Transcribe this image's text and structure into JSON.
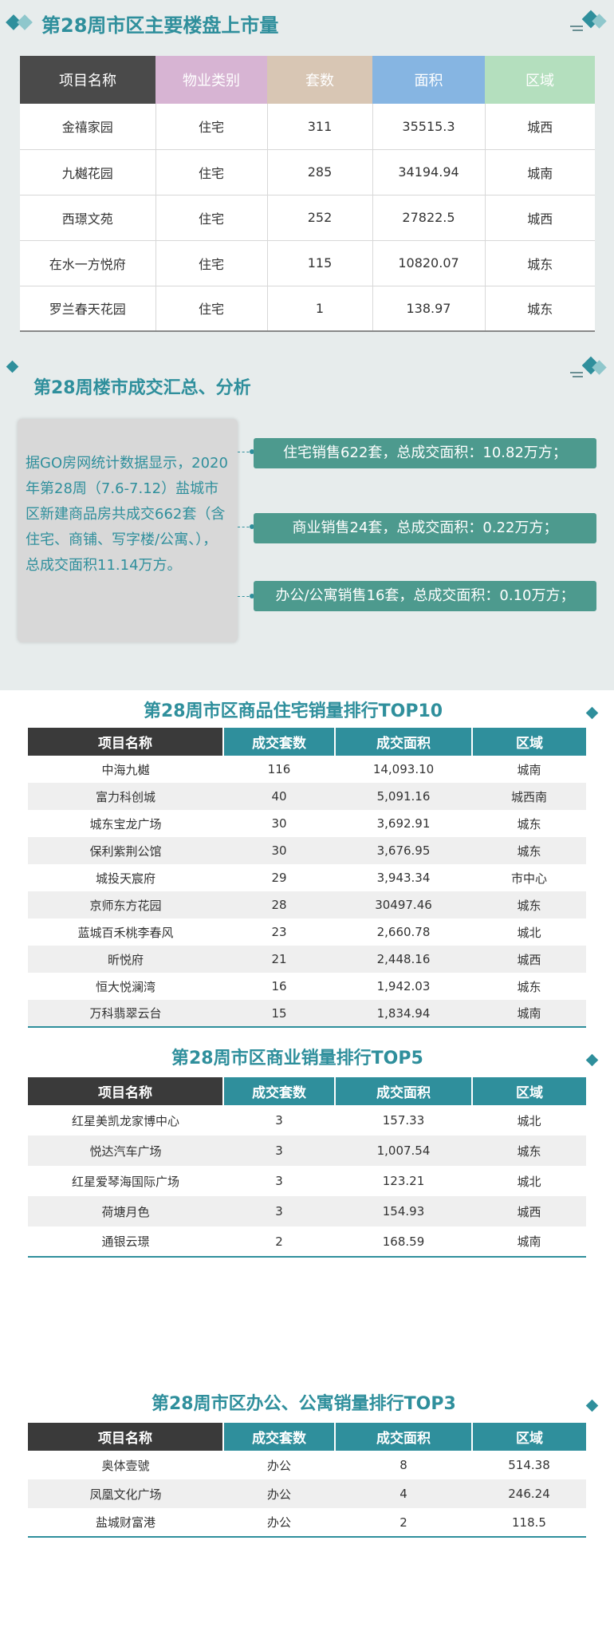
{
  "section1": {
    "title": "第28周市区主要楼盘上市量",
    "headers": [
      "项目名称",
      "物业类别",
      "套数",
      "面积",
      "区域"
    ],
    "rows": [
      [
        "金禧家园",
        "住宅",
        "311",
        "35515.3",
        "城西"
      ],
      [
        "九樾花园",
        "住宅",
        "285",
        "34194.94",
        "城南"
      ],
      [
        "西璟文苑",
        "住宅",
        "252",
        "27822.5",
        "城西"
      ],
      [
        "在水一方悦府",
        "住宅",
        "115",
        "10820.07",
        "城东"
      ],
      [
        "罗兰春天花园",
        "住宅",
        "1",
        "138.97",
        "城东"
      ]
    ]
  },
  "section2": {
    "title": "第28周楼市成交汇总、分析",
    "summary": "据GO房网统计数据显示，2020年第28周（7.6-7.12）盐城市区新建商品房共成交662套（含住宅、商铺、写字楼/公寓、），总成交面积11.14万方。",
    "pills": [
      "住宅销售622套，总成交面积：10.82万方；",
      "商业销售24套，总成交面积：0.22万方；",
      "办公/公寓销售16套，总成交面积：0.10万方；"
    ]
  },
  "section3": {
    "title": "第28周市区商品住宅销量排行TOP10",
    "headers": [
      "项目名称",
      "成交套数",
      "成交面积",
      "区域"
    ],
    "rows": [
      [
        "中海九樾",
        "116",
        "14,093.10",
        "城南"
      ],
      [
        "富力科创城",
        "40",
        "5,091.16",
        "城西南"
      ],
      [
        "城东宝龙广场",
        "30",
        "3,692.91",
        "城东"
      ],
      [
        "保利紫荆公馆",
        "30",
        "3,676.95",
        "城东"
      ],
      [
        "城投天宸府",
        "29",
        "3,943.34",
        "市中心"
      ],
      [
        "京师东方花园",
        "28",
        "30497.46",
        "城东"
      ],
      [
        "蓝城百禾桃李春风",
        "23",
        "2,660.78",
        "城北"
      ],
      [
        "昕悦府",
        "21",
        "2,448.16",
        "城西"
      ],
      [
        "恒大悦澜湾",
        "16",
        "1,942.03",
        "城东"
      ],
      [
        "万科翡翠云台",
        "15",
        "1,834.94",
        "城南"
      ]
    ]
  },
  "section4": {
    "title": "第28周市区商业销量排行TOP5",
    "headers": [
      "项目名称",
      "成交套数",
      "成交面积",
      "区域"
    ],
    "rows": [
      [
        "红星美凯龙家博中心",
        "3",
        "157.33",
        "城北"
      ],
      [
        "悦达汽车广场",
        "3",
        "1,007.54",
        "城东"
      ],
      [
        "红星爱琴海国际广场",
        "3",
        "123.21",
        "城北"
      ],
      [
        "荷塘月色",
        "3",
        "154.93",
        "城西"
      ],
      [
        "通银云璟",
        "2",
        "168.59",
        "城南"
      ]
    ]
  },
  "section5": {
    "title": "第28周市区办公、公寓销量排行TOP3",
    "headers": [
      "项目名称",
      "成交套数",
      "成交面积",
      "区域"
    ],
    "rows": [
      [
        "奥体壹號",
        "办公",
        "8",
        "514.38"
      ],
      [
        "凤凰文化广场",
        "办公",
        "4",
        "246.24"
      ],
      [
        "盐城财富港",
        "办公",
        "2",
        "118.5"
      ]
    ]
  }
}
